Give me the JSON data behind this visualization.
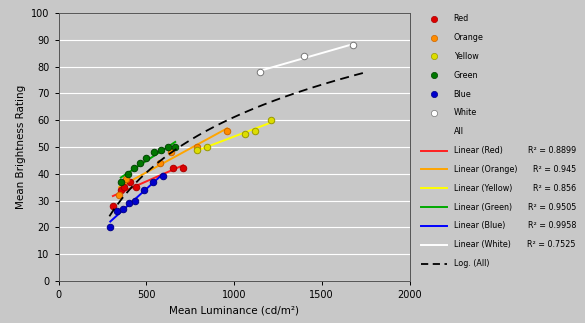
{
  "xlabel": "Mean Luminance (cd/m²)",
  "ylabel": "Mean Brightness Rating",
  "xlim": [
    0,
    2000
  ],
  "ylim": [
    0,
    100
  ],
  "xticks": [
    0,
    500,
    1000,
    1500,
    2000
  ],
  "yticks": [
    0,
    10,
    20,
    30,
    40,
    50,
    60,
    70,
    80,
    90,
    100
  ],
  "bg_color": "#c8c8c8",
  "grid_color": "#ffffff",
  "data": {
    "red": {
      "x": [
        310,
        355,
        375,
        410,
        440,
        655,
        710
      ],
      "y": [
        28,
        34,
        35,
        37,
        35,
        42,
        42
      ],
      "fc": "#dd0000",
      "ec": "#aa0000",
      "lc": "#ff2020"
    },
    "orange": {
      "x": [
        345,
        385,
        580,
        640,
        790,
        960
      ],
      "y": [
        32,
        38,
        44,
        48,
        50,
        56
      ],
      "fc": "#ff8c00",
      "ec": "#cc6600",
      "lc": "#ffa500"
    },
    "yellow": {
      "x": [
        790,
        845,
        1060,
        1120,
        1210
      ],
      "y": [
        49,
        50,
        55,
        56,
        60
      ],
      "fc": "#dddd00",
      "ec": "#999900",
      "lc": "#ffff00"
    },
    "green": {
      "x": [
        355,
        395,
        430,
        465,
        500,
        545,
        585,
        625,
        665
      ],
      "y": [
        37,
        40,
        42,
        44,
        46,
        48,
        49,
        50,
        50
      ],
      "fc": "#007700",
      "ec": "#004400",
      "lc": "#00aa00"
    },
    "blue": {
      "x": [
        295,
        335,
        365,
        400,
        435,
        485,
        540,
        595
      ],
      "y": [
        20,
        26,
        27,
        29,
        30,
        34,
        37,
        39
      ],
      "fc": "#0000cc",
      "ec": "#000088",
      "lc": "#0000ff"
    },
    "white": {
      "x": [
        1150,
        1400,
        1680
      ],
      "y": [
        78,
        84,
        88
      ],
      "fc": "#ffffff",
      "ec": "#777777",
      "lc": "#ffffff"
    }
  },
  "legend_items": [
    {
      "type": "marker",
      "color_key": "red",
      "label": "Red"
    },
    {
      "type": "marker",
      "color_key": "orange",
      "label": "Orange"
    },
    {
      "type": "marker",
      "color_key": "yellow",
      "label": "Yellow"
    },
    {
      "type": "marker",
      "color_key": "green",
      "label": "Green"
    },
    {
      "type": "marker",
      "color_key": "blue",
      "label": "Blue"
    },
    {
      "type": "marker",
      "color_key": "white",
      "label": "White"
    },
    {
      "type": "blank",
      "label": "All"
    },
    {
      "type": "line",
      "color_key": "red",
      "label": "Linear (Red)",
      "r2": "R² = 0.8899"
    },
    {
      "type": "line",
      "color_key": "orange",
      "label": "Linear (Orange)",
      "r2": "R² = 0.945"
    },
    {
      "type": "line",
      "color_key": "yellow",
      "label": "Linear (Yellow)",
      "r2": "R² = 0.856"
    },
    {
      "type": "line",
      "color_key": "green",
      "label": "Linear (Green)",
      "r2": "R² = 0.9505"
    },
    {
      "type": "line",
      "color_key": "blue",
      "label": "Linear (Blue)",
      "r2": "R² = 0.9958"
    },
    {
      "type": "line",
      "color_key": "white",
      "label": "Linear (White)",
      "r2": "R² = 0.7525"
    },
    {
      "type": "dashed",
      "label": "Log. (All)",
      "r2": ""
    }
  ]
}
